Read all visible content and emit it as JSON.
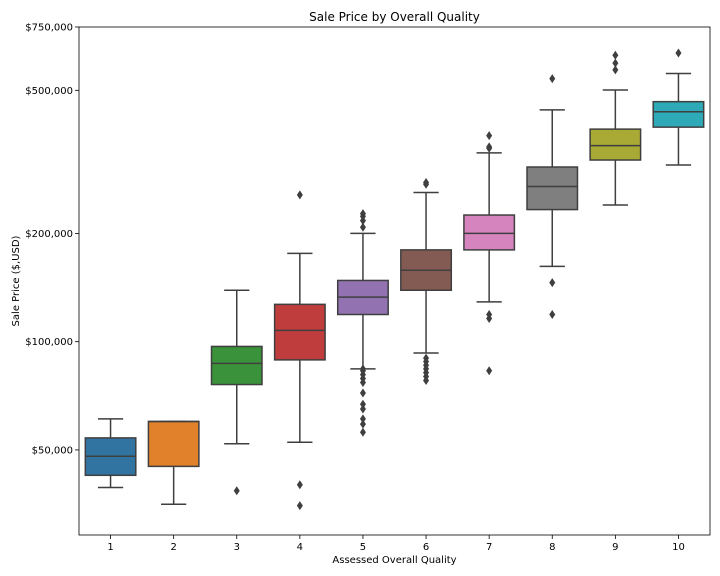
{
  "chart_data": {
    "type": "box",
    "title": "Sale Price by Overall Quality",
    "xlabel": "Assessed Overall Quality",
    "ylabel": "Sale Price ($,USD)",
    "y_scale": "log",
    "ylim": [
      29000,
      750000
    ],
    "y_ticks": [
      {
        "value": 50000,
        "label": "$50,000"
      },
      {
        "value": 100000,
        "label": "$100,000"
      },
      {
        "value": 200000,
        "label": "$200,000"
      },
      {
        "value": 500000,
        "label": "$500,000"
      },
      {
        "value": 750000,
        "label": "$750,000"
      }
    ],
    "categories": [
      "1",
      "2",
      "3",
      "4",
      "5",
      "6",
      "7",
      "8",
      "9",
      "10"
    ],
    "boxes": [
      {
        "category": "1",
        "color": "#3274a1",
        "whisker_low": 39300,
        "q1": 42500,
        "median": 48000,
        "q3": 54000,
        "whisker_high": 61000,
        "outliers": []
      },
      {
        "category": "2",
        "color": "#e1812c",
        "whisker_low": 35300,
        "q1": 45000,
        "median": 60000,
        "q3": 60000,
        "whisker_high": 60000,
        "outliers": []
      },
      {
        "category": "3",
        "color": "#3a923a",
        "whisker_low": 52000,
        "q1": 76000,
        "median": 87000,
        "q3": 97000,
        "whisker_high": 139000,
        "outliers": [
          38500
        ]
      },
      {
        "category": "4",
        "color": "#c03d3e",
        "whisker_low": 52500,
        "q1": 89000,
        "median": 107500,
        "q3": 127000,
        "whisker_high": 176000,
        "outliers": [
          256000,
          40000,
          35000
        ]
      },
      {
        "category": "5",
        "color": "#9372b2",
        "whisker_low": 84000,
        "q1": 119000,
        "median": 133000,
        "q3": 148000,
        "whisker_high": 200000,
        "outliers": [
          227000,
          223000,
          217000,
          208000,
          84000,
          83000,
          81000,
          79000,
          77000,
          72000,
          67000,
          65000,
          61000,
          59000,
          56000
        ]
      },
      {
        "category": "6",
        "color": "#845b53",
        "whisker_low": 93000,
        "q1": 139000,
        "median": 158000,
        "q3": 180000,
        "whisker_high": 260000,
        "outliers": [
          277000,
          274000,
          90000,
          88000,
          86000,
          84000,
          82000,
          80000,
          78000
        ]
      },
      {
        "category": "7",
        "color": "#d684bd",
        "whisker_low": 129000,
        "q1": 180000,
        "median": 200000,
        "q3": 225000,
        "whisker_high": 335000,
        "outliers": [
          374000,
          348000,
          345000,
          119000,
          116000,
          83000
        ]
      },
      {
        "category": "8",
        "color": "#7f7f7f",
        "whisker_low": 162000,
        "q1": 233000,
        "median": 270000,
        "q3": 306000,
        "whisker_high": 441000,
        "outliers": [
          539000,
          146000,
          119000
        ]
      },
      {
        "category": "9",
        "color": "#a9aa35",
        "whisker_low": 240000,
        "q1": 320000,
        "median": 351000,
        "q3": 390000,
        "whisker_high": 501000,
        "outliers": [
          626000,
          595000,
          570000
        ]
      },
      {
        "category": "10",
        "color": "#2ea9b8",
        "whisker_low": 310000,
        "q1": 395000,
        "median": 436000,
        "q3": 465000,
        "whisker_high": 557000,
        "outliers": [
          635000
        ]
      }
    ]
  }
}
